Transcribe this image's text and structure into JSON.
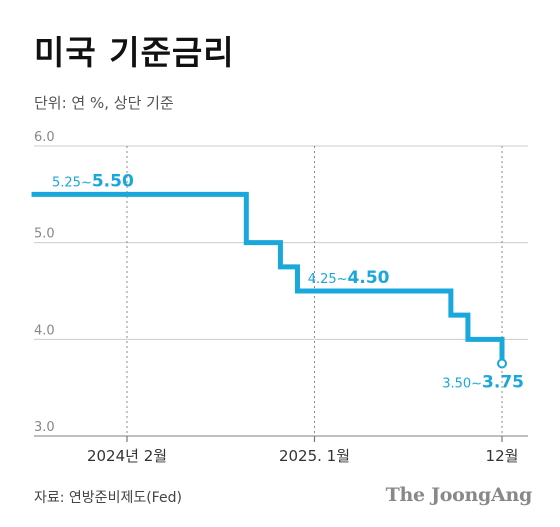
{
  "header": {
    "title": "미국 기준금리",
    "subtitle": "단위: 연 %, 상단 기준"
  },
  "footer": {
    "source": "자료: 연방준비제도(Fed)",
    "brand": "The JoongAng"
  },
  "colors": {
    "line": "#1aa7db",
    "grid": "#cccccc",
    "axis_text": "#888888",
    "x_text": "#333333"
  },
  "chart_data": {
    "type": "line",
    "step": true,
    "title": "미국 기준금리",
    "subtitle": "단위: 연 %, 상단 기준",
    "xlabel": "",
    "ylabel": "",
    "ylim": [
      3.0,
      6.0
    ],
    "y_ticks": [
      {
        "value": 6.0,
        "label": "6.0"
      },
      {
        "value": 5.0,
        "label": "5.0"
      },
      {
        "value": 4.0,
        "label": "4.0"
      },
      {
        "value": 3.0,
        "label": "3.0"
      }
    ],
    "x_ticks": [
      {
        "x": "2024-02",
        "label": "2024년 2월"
      },
      {
        "x": "2025-01",
        "label": "2025. 1월"
      },
      {
        "x": "2025-12",
        "label": "12월"
      }
    ],
    "xlim": [
      "2023-09",
      "2025-12"
    ],
    "grid": true,
    "series": [
      {
        "points": [
          {
            "x": "2023-09",
            "y": 5.5
          },
          {
            "x": "2024-09",
            "y": 5.0
          },
          {
            "x": "2024-11",
            "y": 4.75
          },
          {
            "x": "2024-12",
            "y": 4.5
          },
          {
            "x": "2025-09",
            "y": 4.25
          },
          {
            "x": "2025-10",
            "y": 4.0
          },
          {
            "x": "2025-12",
            "y": 3.75
          }
        ],
        "end": "2025-12"
      }
    ],
    "annotations": [
      {
        "lower": "5.25~",
        "upper": "5.50",
        "x": "2023-12",
        "y": 5.5
      },
      {
        "lower": "4.25~",
        "upper": "4.50",
        "x": "2025-03",
        "y": 4.5
      },
      {
        "lower": "3.50~",
        "upper": "3.75",
        "x": "2025-12",
        "y": 3.75
      }
    ]
  }
}
